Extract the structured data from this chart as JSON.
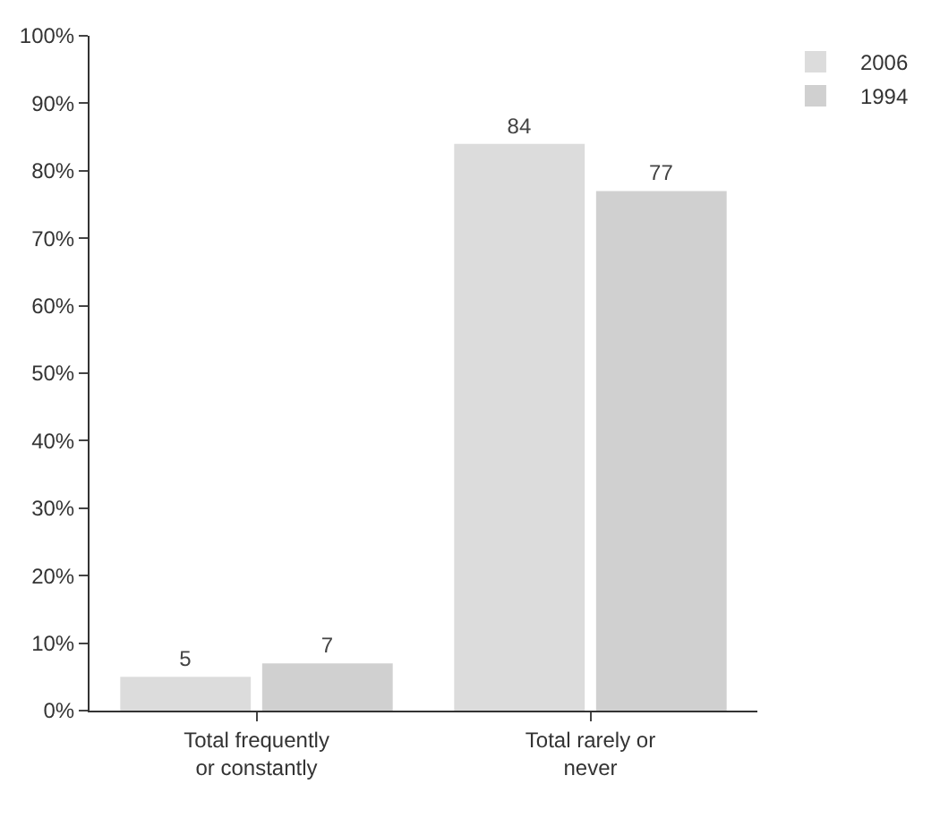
{
  "chart_data": {
    "type": "bar",
    "categories": [
      "Total frequently or constantly",
      "Total rarely or never"
    ],
    "series": [
      {
        "name": "2006",
        "color": "#dcdcdc",
        "values": [
          5,
          84
        ]
      },
      {
        "name": "1994",
        "color": "#d0d0d0",
        "values": [
          7,
          77
        ]
      }
    ],
    "ylim": [
      0,
      100
    ],
    "yticks": [
      {
        "value": 0,
        "label": "0%"
      },
      {
        "value": 10,
        "label": "10%"
      },
      {
        "value": 20,
        "label": "20%"
      },
      {
        "value": 30,
        "label": "30%"
      },
      {
        "value": 40,
        "label": "40%"
      },
      {
        "value": 50,
        "label": "50%"
      },
      {
        "value": 60,
        "label": "60%"
      },
      {
        "value": 70,
        "label": "70%"
      },
      {
        "value": 80,
        "label": "80%"
      },
      {
        "value": 90,
        "label": "90%"
      },
      {
        "value": 100,
        "label": "100%"
      }
    ],
    "data_labels": true,
    "grid": false,
    "legend": "top right"
  }
}
